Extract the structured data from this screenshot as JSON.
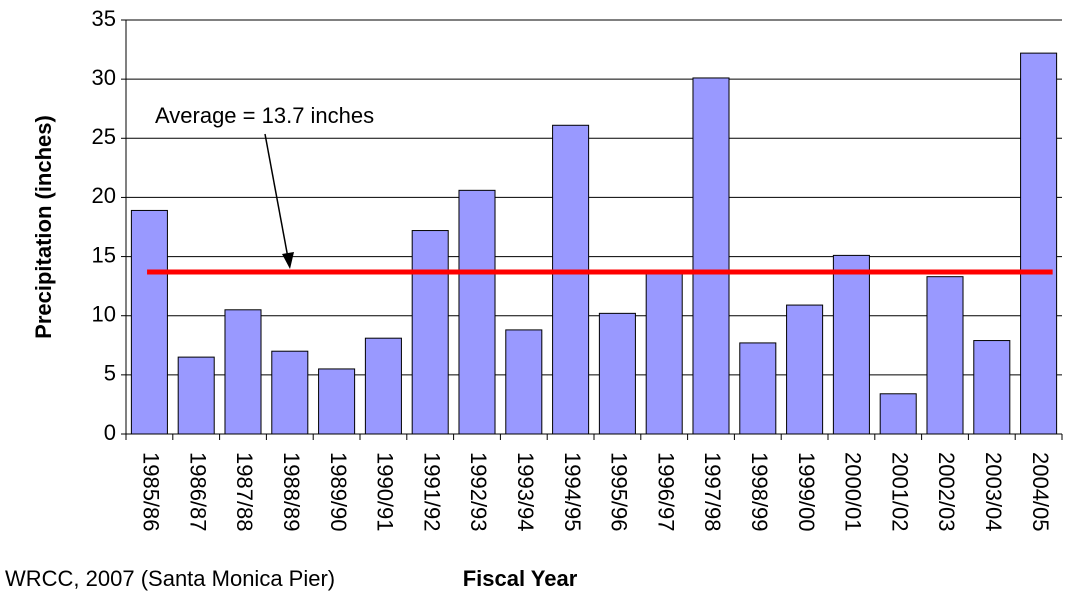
{
  "chart_data": {
    "type": "bar",
    "categories": [
      "1985/86",
      "1986/87",
      "1987/88",
      "1988/89",
      "1989/90",
      "1990/91",
      "1991/92",
      "1992/93",
      "1993/94",
      "1994/95",
      "1995/96",
      "1996/97",
      "1997/98",
      "1998/99",
      "1999/00",
      "2000/01",
      "2001/02",
      "2002/03",
      "2003/04",
      "2004/05"
    ],
    "values": [
      18.9,
      6.5,
      10.5,
      7.0,
      5.5,
      8.1,
      17.2,
      20.6,
      8.8,
      26.1,
      10.2,
      13.6,
      30.1,
      7.7,
      10.9,
      15.1,
      3.4,
      13.3,
      7.9,
      32.2
    ],
    "color": "#9999ff",
    "ylim": [
      0,
      35
    ],
    "yticks": [
      0,
      5,
      10,
      15,
      20,
      25,
      30,
      35
    ],
    "grid": true,
    "ylabel": "Precipitation (inches)",
    "xlabel": "Fiscal Year",
    "average": 13.7,
    "average_color": "#ff0000",
    "annotation": "Average = 13.7 inches",
    "source": "WRCC, 2007 (Santa Monica Pier)"
  }
}
